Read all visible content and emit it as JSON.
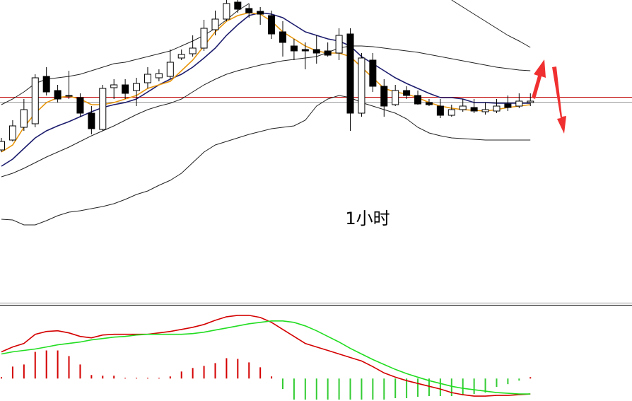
{
  "chart_data": [
    {
      "type": "candlestick",
      "annotation": "1小时",
      "ylim": [
        170,
        600
      ],
      "open": [
        388,
        402,
        420,
        425,
        492,
        472,
        465,
        462,
        440,
        417,
        476,
        480,
        472,
        483,
        490,
        492,
        518,
        524,
        532,
        558,
        573,
        597,
        588,
        584,
        578,
        555,
        535,
        530,
        530,
        528,
        525,
        552,
        440,
        515,
        478,
        452,
        472,
        465,
        455,
        450,
        437,
        445,
        448,
        442,
        443,
        453,
        450,
        455
      ],
      "high": [
        405,
        430,
        460,
        495,
        505,
        480,
        500,
        468,
        450,
        480,
        488,
        488,
        490,
        505,
        502,
        530,
        530,
        550,
        572,
        585,
        600,
        600,
        595,
        590,
        585,
        570,
        545,
        540,
        550,
        540,
        560,
        560,
        525,
        525,
        488,
        480,
        478,
        472,
        460,
        460,
        452,
        460,
        460,
        455,
        460,
        465,
        468,
        468
      ],
      "low": [
        385,
        400,
        415,
        420,
        465,
        455,
        460,
        435,
        410,
        415,
        460,
        460,
        450,
        475,
        485,
        488,
        515,
        520,
        528,
        550,
        570,
        582,
        575,
        565,
        545,
        520,
        515,
        502,
        510,
        520,
        515,
        415,
        435,
        470,
        435,
        450,
        460,
        452,
        450,
        433,
        435,
        442,
        440,
        438,
        440,
        443,
        447,
        450
      ],
      "close": [
        400,
        422,
        445,
        490,
        470,
        460,
        465,
        440,
        418,
        475,
        480,
        468,
        482,
        495,
        496,
        512,
        523,
        532,
        560,
        573,
        595,
        587,
        582,
        580,
        552,
        540,
        528,
        528,
        525,
        522,
        550,
        440,
        518,
        478,
        450,
        472,
        465,
        453,
        452,
        437,
        445,
        450,
        443,
        445,
        450,
        448,
        457,
        457
      ],
      "up_color": "#ffffff",
      "down_color": "#000000",
      "outline_color": "#000000",
      "lines": [
        {
          "color": "#222222",
          "width": 1,
          "values": [
            452,
            460,
            470,
            482,
            488,
            490,
            492,
            495,
            500,
            505,
            510,
            512,
            516,
            520,
            524,
            528,
            535,
            542,
            550,
            560,
            572,
            585,
            595,
            null,
            null,
            null,
            null,
            null,
            null,
            null,
            null,
            null,
            null,
            null,
            null,
            null,
            null,
            null,
            null,
            null,
            600,
            590,
            580,
            570,
            560,
            550,
            542,
            533
          ]
        },
        {
          "color": "#222222",
          "width": 1,
          "values": [
            350,
            355,
            362,
            370,
            378,
            385,
            392,
            400,
            408,
            415,
            422,
            430,
            438,
            445,
            450,
            454,
            460,
            470,
            480,
            488,
            495,
            500,
            504,
            508,
            511,
            514,
            516,
            518,
            520,
            526,
            532,
            535,
            535,
            534,
            532,
            530,
            528,
            526,
            523,
            520,
            517,
            514,
            511,
            508,
            505,
            503,
            501,
            500
          ]
        },
        {
          "color": "#222222",
          "width": 1,
          "values": [
            290,
            289,
            282,
            282,
            288,
            295,
            300,
            302,
            305,
            308,
            312,
            318,
            325,
            330,
            338,
            345,
            355,
            370,
            385,
            395,
            400,
            405,
            410,
            414,
            418,
            420,
            422,
            430,
            450,
            460,
            465,
            462,
            455,
            450,
            445,
            440,
            432,
            420,
            412,
            408,
            405,
            404,
            403,
            402,
            402,
            402,
            402,
            402
          ]
        },
        {
          "color": "#1c1c6e",
          "width": 1.6,
          "values": [
            365,
            375,
            390,
            405,
            415,
            422,
            428,
            435,
            442,
            448,
            452,
            455,
            460,
            470,
            480,
            488,
            495,
            505,
            518,
            532,
            550,
            565,
            578,
            582,
            580,
            575,
            565,
            555,
            550,
            545,
            542,
            535,
            520,
            510,
            500,
            490,
            482,
            475,
            468,
            462,
            462,
            460,
            455,
            455,
            454,
            454,
            454,
            454
          ]
        },
        {
          "color": "#e8960c",
          "width": 1.6,
          "values": [
            385,
            395,
            420,
            440,
            455,
            462,
            464,
            460,
            452,
            452,
            455,
            460,
            465,
            475,
            480,
            485,
            500,
            515,
            535,
            555,
            570,
            578,
            582,
            580,
            570,
            555,
            545,
            535,
            528,
            525,
            525,
            520,
            505,
            490,
            475,
            470,
            467,
            462,
            455,
            450,
            447,
            445,
            444,
            443,
            445,
            448,
            450,
            452
          ]
        }
      ],
      "reference_lines": [
        {
          "value": 463,
          "color": "#c00000"
        },
        {
          "value": 456,
          "color": "#999999"
        }
      ]
    },
    {
      "type": "macd",
      "ylim": [
        -32,
        103
      ],
      "series": [
        {
          "color": "#d40000",
          "values": [
            38,
            45,
            50,
            63,
            67,
            68,
            65,
            60,
            58,
            62,
            63,
            63,
            63,
            63,
            65,
            67,
            70,
            73,
            77,
            83,
            88,
            90,
            90,
            87,
            80,
            70,
            60,
            50,
            45,
            40,
            35,
            30,
            25,
            17,
            8,
            2,
            -3,
            -7,
            -11,
            -15,
            -20,
            -23,
            -25,
            -25,
            -24,
            -24,
            -23,
            -22
          ]
        },
        {
          "color": "#22dd22",
          "values": [
            35,
            38,
            40,
            42,
            45,
            48,
            50,
            52,
            55,
            57,
            59,
            60,
            62,
            63,
            63,
            63,
            63,
            64,
            66,
            69,
            72,
            75,
            78,
            80,
            82,
            82,
            80,
            75,
            68,
            60,
            52,
            43,
            35,
            27,
            20,
            13,
            7,
            2,
            -3,
            -7,
            -11,
            -14,
            -16,
            -18,
            -20,
            -21,
            -22,
            -22
          ]
        }
      ],
      "histogram": {
        "positive_color": "#d40000",
        "negative_color": "#33cc33",
        "values": [
          2,
          17,
          20,
          38,
          40,
          40,
          32,
          20,
          5,
          4,
          4,
          1,
          1,
          1,
          1,
          3,
          10,
          15,
          18,
          22,
          29,
          28,
          23,
          16,
          3,
          -15,
          -30,
          -30,
          -30,
          -30,
          -30,
          -30,
          -30,
          -30,
          -30,
          -28,
          -28,
          -26,
          -25,
          -25,
          -25,
          -24,
          -22,
          -20,
          -12,
          -8,
          -3,
          2
        ]
      }
    }
  ]
}
